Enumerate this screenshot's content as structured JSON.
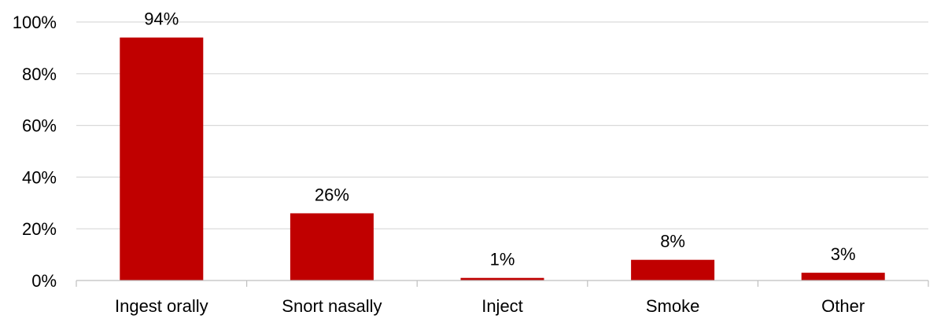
{
  "chart_data": {
    "type": "bar",
    "title": "",
    "xlabel": "",
    "ylabel": "",
    "categories": [
      "Ingest orally",
      "Snort nasally",
      "Inject",
      "Smoke",
      "Other"
    ],
    "values": [
      94,
      26,
      1,
      8,
      3
    ],
    "data_labels": [
      "94%",
      "26%",
      "1%",
      "8%",
      "3%"
    ],
    "ylim": [
      0,
      100
    ],
    "y_ticks": [
      0,
      20,
      40,
      60,
      80,
      100
    ],
    "y_tick_labels": [
      "0%",
      "20%",
      "40%",
      "60%",
      "80%",
      "100%"
    ],
    "grid": true,
    "legend": "none",
    "bar_color": "#c00000"
  }
}
